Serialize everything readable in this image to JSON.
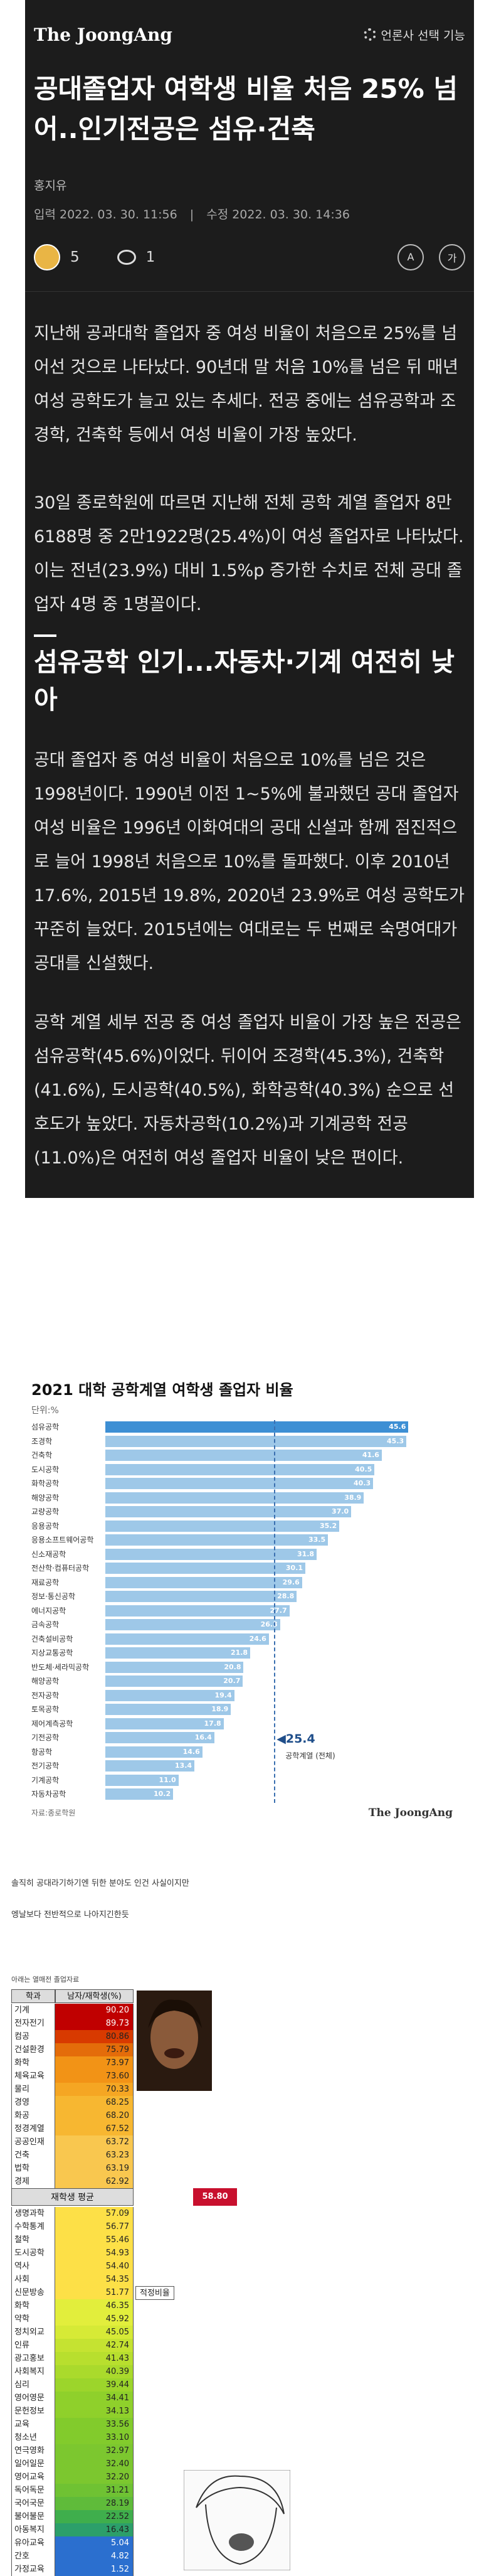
{
  "header": {
    "logo": "The JoongAng",
    "press_select": "언론사 선택 기능"
  },
  "article": {
    "title": "공대졸업자 여학생 비율 처음 25% 넘어..인기전공은 섬유·건축",
    "author": "홍지유",
    "published": "입력 2022. 03. 30. 11:56",
    "updated": "수정 2022. 03. 30. 14:36",
    "reaction_count": "5",
    "comment_count": "1",
    "tool_font": "가",
    "tool_translate": "A",
    "p1": "지난해 공과대학 졸업자 중 여성 비율이 처음으로 25%를 넘어선 것으로 나타났다. 90년대 말 처음 10%를 넘은 뒤 매년 여성 공학도가 늘고 있는 추세다. 전공 중에는 섬유공학과 조경학, 건축학 등에서 여성 비율이 가장 높았다.",
    "p2": "30일 종로학원에 따르면 지난해 전체 공학 계열 졸업자 8만6188명 중 2만1922명(25.4%)이 여성 졸업자로 나타났다. 이는 전년(23.9%) 대비 1.5%p 증가한 수치로 전체 공대 졸업자 4명 중 1명꼴이다.",
    "subheading": "섬유공학 인기...자동차·기계 여전히 낮아",
    "p3": "공대 졸업자 중 여성 비율이 처음으로 10%를 넘은 것은 1998년이다. 1990년 이전 1~5%에 불과했던 공대 졸업자 여성 비율은 1996년 이화여대의 공대 신설과 함께 점진적으로 늘어 1998년 처음으로 10%를 돌파했다. 이후 2010년 17.6%, 2015년 19.8%, 2020년 23.9%로 여성 공학도가 꾸준히 늘었다. 2015년에는 여대로는 두 번째로 숙명여대가 공대를 신설했다.",
    "p4": "공학 계열 세부 전공 중 여성 졸업자 비율이 가장 높은 전공은 섬유공학(45.6%)이었다. 뒤이어 조경학(45.3%), 건축학(41.6%), 도시공학(40.5%), 화학공학(40.3%) 순으로 선호도가 높았다. 자동차공학(10.2%)과 기계공학 전공(11.0%)은 여전히 여성 졸업자 비율이 낮은 편이다."
  },
  "chart_data": {
    "type": "bar",
    "title": "2021 대학 공학계열 여학생 졸업자 비율",
    "unit": "단위:%",
    "categories": [
      "섬유공학",
      "조경학",
      "건축학",
      "도시공학",
      "화학공학",
      "해양공학",
      "교량공학",
      "응용공학",
      "응용소프트웨어공학",
      "신소재공학",
      "전산학·컴퓨터공학",
      "재료공학",
      "정보·통신공학",
      "에너지공학",
      "금속공학",
      "건축설비공학",
      "지상교통공학",
      "반도체·세라믹공학",
      "해양공학",
      "전자공학",
      "토목공학",
      "제어계측공학",
      "기전공학",
      "항공학",
      "전기공학",
      "기계공학",
      "자동차공학"
    ],
    "values": [
      45.6,
      45.3,
      41.6,
      40.5,
      40.3,
      38.9,
      37.0,
      35.2,
      33.5,
      31.8,
      30.1,
      29.6,
      28.8,
      27.7,
      26.3,
      24.6,
      21.8,
      20.8,
      20.7,
      19.4,
      18.9,
      17.8,
      16.4,
      14.6,
      13.4,
      11.0,
      10.2
    ],
    "average": {
      "value": 25.4,
      "label": "◀25.4",
      "sub": "공학계열 (전체)"
    },
    "source": "자료:종로학원",
    "brand": "The JoongAng",
    "xlim": [
      0,
      50
    ]
  },
  "notes": [
    "솔직히 공대라기하기엔 뒤한 분야도 인건 사실이지만",
    "엥날보다 전반적으로 나아지긴한듯"
  ],
  "table": {
    "caption": "아래는 열매전 졸업자료",
    "col_major": "학과",
    "col_ratio": "남자/재학생(%)",
    "avg_label": "재학생 평균",
    "avg_value": "58.80",
    "fit_label": "적정비율",
    "rows": [
      {
        "name": "기계",
        "value": "90.20",
        "color": "#c00000"
      },
      {
        "name": "전자전기",
        "value": "89.73",
        "color": "#c00000"
      },
      {
        "name": "컴공",
        "value": "80.86",
        "color": "#d83a00"
      },
      {
        "name": "건설환경",
        "value": "75.79",
        "color": "#e46c0a"
      },
      {
        "name": "화학",
        "value": "73.97",
        "color": "#f29316"
      },
      {
        "name": "체육교육",
        "value": "73.60",
        "color": "#f29316"
      },
      {
        "name": "물리",
        "value": "70.33",
        "color": "#f5a623"
      },
      {
        "name": "경영",
        "value": "68.25",
        "color": "#f7b731"
      },
      {
        "name": "화공",
        "value": "68.20",
        "color": "#f7b731"
      },
      {
        "name": "정경계열",
        "value": "67.52",
        "color": "#f7b731"
      },
      {
        "name": "공공인재",
        "value": "63.72",
        "color": "#f9c74f"
      },
      {
        "name": "건축",
        "value": "63.23",
        "color": "#f9c74f"
      },
      {
        "name": "법학",
        "value": "63.19",
        "color": "#f9c74f"
      },
      {
        "name": "경제",
        "value": "62.92",
        "color": "#f9c74f"
      },
      {
        "name": "생명과학",
        "value": "57.09",
        "color": "#fde047"
      },
      {
        "name": "수학통계",
        "value": "56.77",
        "color": "#fde047"
      },
      {
        "name": "철학",
        "value": "55.46",
        "color": "#fde047"
      },
      {
        "name": "도시공학",
        "value": "54.93",
        "color": "#fde047"
      },
      {
        "name": "역사",
        "value": "54.40",
        "color": "#fde047"
      },
      {
        "name": "사회",
        "value": "54.35",
        "color": "#fde047"
      },
      {
        "name": "신문방송",
        "value": "51.77",
        "color": "#fde047"
      },
      {
        "name": "화학",
        "value": "46.35",
        "color": "#e2ee3c"
      },
      {
        "name": "약학",
        "value": "45.92",
        "color": "#e2ee3c"
      },
      {
        "name": "정치외교",
        "value": "45.05",
        "color": "#d6ea36"
      },
      {
        "name": "인류",
        "value": "42.74",
        "color": "#c5e331"
      },
      {
        "name": "광고홍보",
        "value": "41.43",
        "color": "#b8df2e"
      },
      {
        "name": "사회복지",
        "value": "40.39",
        "color": "#aada2c"
      },
      {
        "name": "심리",
        "value": "39.44",
        "color": "#9cd52b"
      },
      {
        "name": "영어영문",
        "value": "34.41",
        "color": "#8fd02b"
      },
      {
        "name": "문헌정보",
        "value": "34.13",
        "color": "#8fd02b"
      },
      {
        "name": "교육",
        "value": "33.56",
        "color": "#82cb2c"
      },
      {
        "name": "청소년",
        "value": "33.10",
        "color": "#82cb2c"
      },
      {
        "name": "연극영화",
        "value": "32.97",
        "color": "#7cc72f"
      },
      {
        "name": "일어일문",
        "value": "32.40",
        "color": "#7cc72f"
      },
      {
        "name": "영어교육",
        "value": "32.20",
        "color": "#7cc72f"
      },
      {
        "name": "독어독문",
        "value": "31.21",
        "color": "#6fc233"
      },
      {
        "name": "국어국문",
        "value": "28.19",
        "color": "#5fbb3a"
      },
      {
        "name": "불어불문",
        "value": "22.52",
        "color": "#3fae4c"
      },
      {
        "name": "아동복지",
        "value": "16.43",
        "color": "#2c9f6a"
      },
      {
        "name": "유아교육",
        "value": "5.04",
        "color": "#2b6fcf"
      },
      {
        "name": "간호",
        "value": "4.82",
        "color": "#2b6fcf"
      },
      {
        "name": "가정교육",
        "value": "1.52",
        "color": "#2b6fcf"
      }
    ]
  }
}
